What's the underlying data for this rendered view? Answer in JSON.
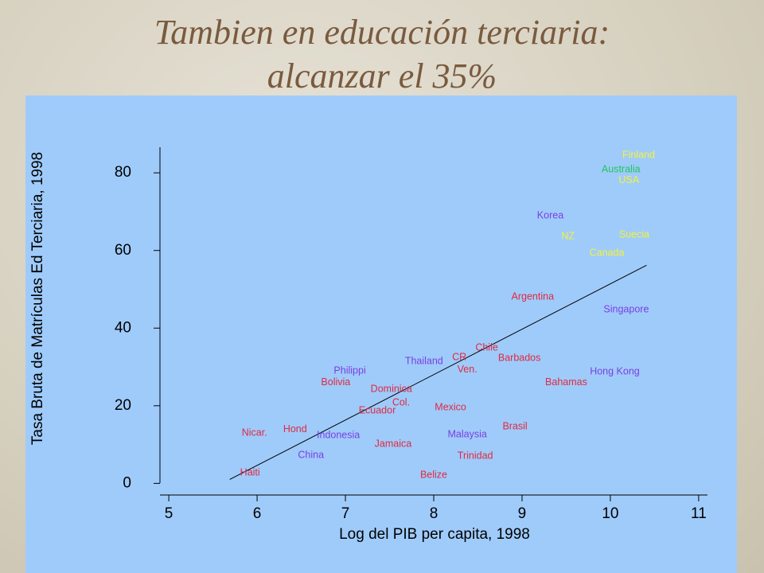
{
  "chart_data": {
    "type": "scatter",
    "title": [
      "Tambien en  educación terciaria:",
      "alcanzar el 35%"
    ],
    "x_label": "Log del PIB per capita, 1998",
    "y_label": "Tasa Bruta de Matrículas Ed Terciaria, 1998",
    "xlim": [
      4.9,
      11.1
    ],
    "ylim": [
      -3,
      86.6
    ],
    "xticks": [
      5,
      6,
      7,
      8,
      9,
      10,
      11
    ],
    "yticks": [
      0,
      20,
      40,
      60,
      80
    ],
    "points": {
      "labels": [
        "Finland",
        "Australia",
        "USA",
        "Korea",
        "NZ",
        "Suecia",
        "Canada",
        "Argentina",
        "Singapore",
        "Chile",
        "CR",
        "Barbados",
        "Thailand",
        "Ven.",
        "Philippi",
        "Hong Kong",
        "Bolivia",
        "Bahamas",
        "Dominica",
        "Col.",
        "Mexico",
        "Ecuador",
        "Brasil",
        "Nicar.",
        "Hond",
        "Indonesia",
        "Malaysia",
        "Jamaica",
        "China",
        "Trinidad",
        "Haiti",
        "Belize"
      ],
      "x": [
        10.32,
        10.12,
        10.21,
        9.32,
        9.52,
        10.27,
        9.96,
        9.12,
        10.18,
        8.6,
        8.29,
        8.97,
        7.89,
        8.38,
        7.05,
        10.05,
        6.89,
        9.5,
        7.52,
        7.63,
        8.19,
        7.36,
        8.92,
        5.97,
        6.43,
        6.92,
        8.38,
        7.54,
        6.61,
        8.47,
        5.92,
        8.0
      ],
      "y": [
        84.5,
        80.8,
        78,
        68.9,
        63.6,
        64,
        59.3,
        48,
        44.7,
        34.9,
        32.4,
        32.2,
        31.4,
        29.3,
        28.9,
        28.7,
        26,
        26,
        24.2,
        20.7,
        19.5,
        18.7,
        14.6,
        12.9,
        13.9,
        12.3,
        12.5,
        10.1,
        7.2,
        7,
        2.7,
        2.1
      ],
      "colors": [
        "#f2f23a",
        "#22c55e",
        "#f2f23a",
        "#7a3fe0",
        "#f2f23a",
        "#f2f23a",
        "#f2f23a",
        "#e02a40",
        "#7a3fe0",
        "#e02a40",
        "#e02a40",
        "#e02a40",
        "#7a3fe0",
        "#e02a40",
        "#7a3fe0",
        "#7a3fe0",
        "#e02a40",
        "#e02a40",
        "#e02a40",
        "#e02a40",
        "#e02a40",
        "#e02a40",
        "#e02a40",
        "#e02a40",
        "#e02a40",
        "#7a3fe0",
        "#7a3fe0",
        "#e02a40",
        "#7a3fe0",
        "#e02a40",
        "#e02a40",
        "#e02a40"
      ]
    },
    "trend": {
      "x": [
        5.69,
        10.41
      ],
      "y": [
        1.0,
        56.2
      ],
      "color": "#000000"
    }
  }
}
